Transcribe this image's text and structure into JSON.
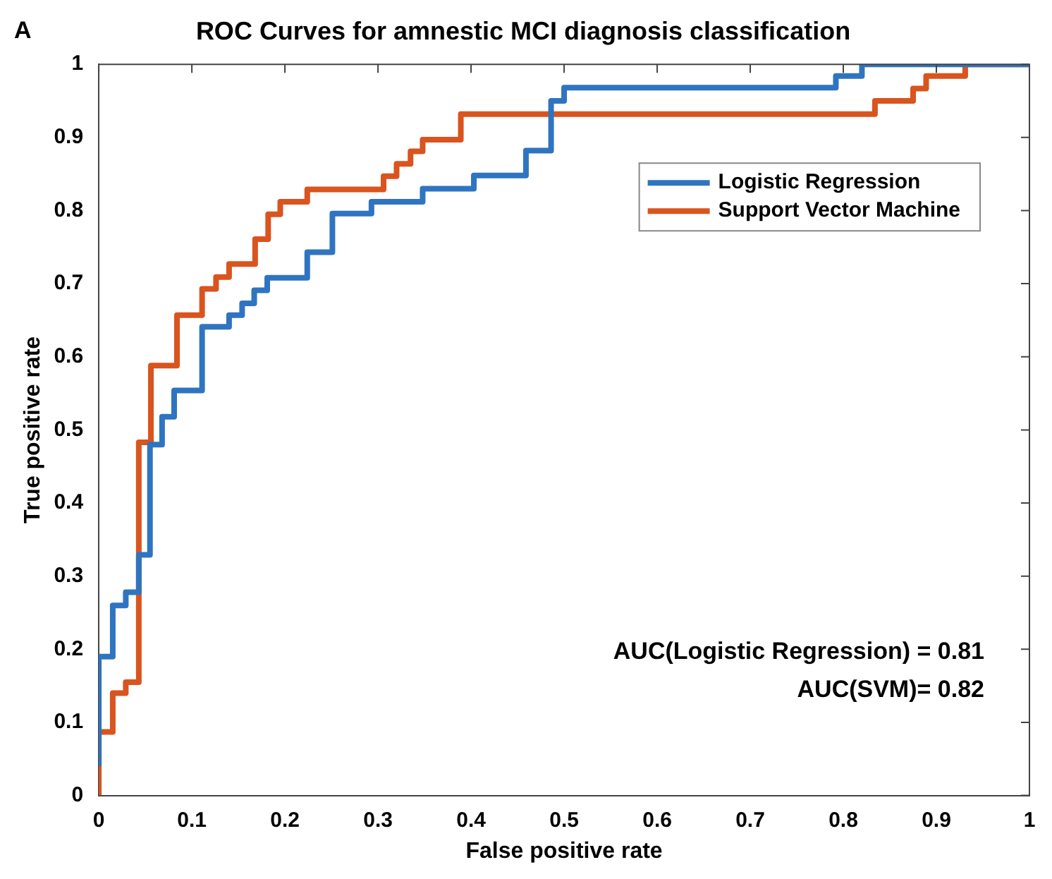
{
  "chart_data": {
    "type": "step",
    "title": "ROC Curves for amnestic MCI diagnosis classification",
    "xlabel": "False positive rate",
    "ylabel": "True positive rate",
    "annotations": [
      "A",
      "AUC(Logistic Regression) = 0.81",
      "AUC(SVM)= 0.82"
    ],
    "xlim": [
      0,
      1
    ],
    "ylim": [
      0,
      1
    ],
    "xticks": [
      0,
      0.1,
      0.2,
      0.3,
      0.4,
      0.5,
      0.6,
      0.7,
      0.8,
      0.9,
      1
    ],
    "yticks": [
      0,
      0.1,
      0.2,
      0.3,
      0.4,
      0.5,
      0.6,
      0.7,
      0.8,
      0.9,
      1
    ],
    "grid": false,
    "legend": "top right",
    "marker": "none",
    "line_style": "solid",
    "series": [
      {
        "name": "Logistic Regression",
        "color": "#2f74c0",
        "x": [
          0,
          0,
          0.015,
          0.029,
          0.043,
          0.055,
          0.068,
          0.081,
          0.111,
          0.14,
          0.154,
          0.167,
          0.181,
          0.224,
          0.251,
          0.293,
          0.348,
          0.403,
          0.459,
          0.486,
          0.5,
          0.792,
          0.82,
          0.962,
          1
        ],
        "values": [
          0.04,
          0.087,
          0.19,
          0.26,
          0.278,
          0.329,
          0.48,
          0.518,
          0.554,
          0.641,
          0.657,
          0.673,
          0.691,
          0.708,
          0.743,
          0.796,
          0.812,
          0.83,
          0.848,
          0.882,
          0.95,
          0.968,
          0.984,
          1,
          1
        ]
      },
      {
        "name": "Support Vector Machine",
        "color": "#d9541e",
        "x": [
          0,
          0,
          0.015,
          0.029,
          0.043,
          0.056,
          0.084,
          0.111,
          0.126,
          0.14,
          0.168,
          0.182,
          0.195,
          0.224,
          0.306,
          0.32,
          0.335,
          0.348,
          0.389,
          0.834,
          0.875,
          0.889,
          0.931,
          0.973,
          1
        ],
        "values": [
          0,
          0.034,
          0.087,
          0.14,
          0.155,
          0.483,
          0.588,
          0.657,
          0.693,
          0.709,
          0.727,
          0.761,
          0.795,
          0.812,
          0.829,
          0.847,
          0.864,
          0.881,
          0.897,
          0.932,
          0.95,
          0.967,
          0.984,
          1,
          1
        ]
      }
    ]
  }
}
